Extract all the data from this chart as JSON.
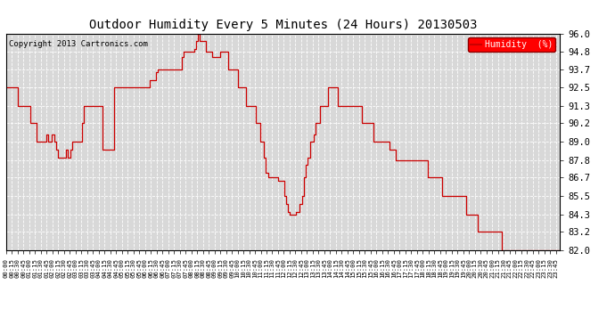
{
  "title": "Outdoor Humidity Every 5 Minutes (24 Hours) 20130503",
  "copyright": "Copyright 2013 Cartronics.com",
  "legend_label": "Humidity  (%)",
  "line_color": "#cc0000",
  "bg_color": "#ffffff",
  "plot_bg_color": "#d8d8d8",
  "grid_color": "#ffffff",
  "ylim": [
    82.0,
    96.0
  ],
  "yticks": [
    82.0,
    83.2,
    84.3,
    85.5,
    86.7,
    87.8,
    89.0,
    90.2,
    91.3,
    92.5,
    93.7,
    94.8,
    96.0
  ],
  "humidity_data": [
    92.5,
    92.5,
    92.5,
    92.5,
    92.5,
    92.5,
    91.3,
    91.3,
    91.3,
    91.3,
    91.3,
    91.3,
    90.2,
    90.2,
    90.2,
    89.0,
    89.0,
    89.0,
    89.0,
    89.0,
    89.5,
    89.0,
    89.0,
    89.5,
    89.0,
    88.5,
    88.0,
    88.0,
    88.0,
    88.0,
    88.5,
    88.0,
    88.5,
    89.0,
    89.0,
    89.0,
    89.0,
    89.0,
    90.2,
    91.3,
    91.3,
    91.3,
    91.3,
    91.3,
    91.3,
    91.3,
    91.3,
    91.3,
    88.5,
    88.5,
    88.5,
    88.5,
    88.5,
    88.5,
    92.5,
    92.5,
    92.5,
    92.5,
    92.5,
    92.5,
    92.5,
    92.5,
    92.5,
    92.5,
    92.5,
    92.5,
    92.5,
    92.5,
    92.5,
    92.5,
    92.5,
    92.5,
    93.0,
    93.0,
    93.0,
    93.5,
    93.7,
    93.7,
    93.7,
    93.7,
    93.7,
    93.7,
    93.7,
    93.7,
    93.7,
    93.7,
    93.7,
    93.7,
    94.5,
    94.8,
    94.8,
    94.8,
    94.8,
    94.8,
    95.0,
    95.5,
    96.0,
    95.5,
    95.5,
    95.5,
    94.8,
    94.8,
    94.8,
    94.5,
    94.5,
    94.5,
    94.5,
    94.8,
    94.8,
    94.8,
    94.8,
    93.7,
    93.7,
    93.7,
    93.7,
    93.7,
    92.5,
    92.5,
    92.5,
    92.5,
    91.3,
    91.3,
    91.3,
    91.3,
    91.3,
    90.2,
    90.2,
    89.0,
    89.0,
    88.0,
    87.0,
    86.7,
    86.7,
    86.7,
    86.7,
    86.7,
    86.5,
    86.5,
    86.5,
    85.5,
    85.0,
    84.5,
    84.3,
    84.3,
    84.3,
    84.5,
    84.5,
    85.0,
    85.5,
    86.7,
    87.5,
    88.0,
    89.0,
    89.0,
    89.5,
    90.2,
    90.2,
    91.3,
    91.3,
    91.3,
    91.3,
    92.5,
    92.5,
    92.5,
    92.5,
    92.5,
    91.3,
    91.3,
    91.3,
    91.3,
    91.3,
    91.3,
    91.3,
    91.3,
    91.3,
    91.3,
    91.3,
    91.3,
    90.2,
    90.2,
    90.2,
    90.2,
    90.2,
    90.2,
    89.0,
    89.0,
    89.0,
    89.0,
    89.0,
    89.0,
    89.0,
    89.0,
    88.5,
    88.5,
    88.5,
    87.8,
    87.8,
    87.8,
    87.8,
    87.8,
    87.8,
    87.8,
    87.8,
    87.8,
    87.8,
    87.8,
    87.8,
    87.8,
    87.8,
    87.8,
    87.8,
    86.7,
    86.7,
    86.7,
    86.7,
    86.7,
    86.7,
    86.7,
    85.5,
    85.5,
    85.5,
    85.5,
    85.5,
    85.5,
    85.5,
    85.5,
    85.5,
    85.5,
    85.5,
    85.5,
    84.3,
    84.3,
    84.3,
    84.3,
    84.3,
    84.3,
    83.2,
    83.2,
    83.2,
    83.2,
    83.2,
    83.2,
    83.2,
    83.2,
    83.2,
    83.2,
    83.2,
    83.2,
    82.0,
    82.0,
    82.0,
    82.0,
    82.0,
    82.0,
    82.0,
    82.0,
    82.0,
    82.0,
    82.0,
    82.0,
    82.0,
    82.0,
    82.0,
    82.0,
    82.0,
    82.0,
    82.0,
    82.0,
    82.0,
    82.0,
    82.0,
    82.0,
    82.0,
    82.0,
    82.0,
    82.0,
    82.0,
    82.0
  ]
}
